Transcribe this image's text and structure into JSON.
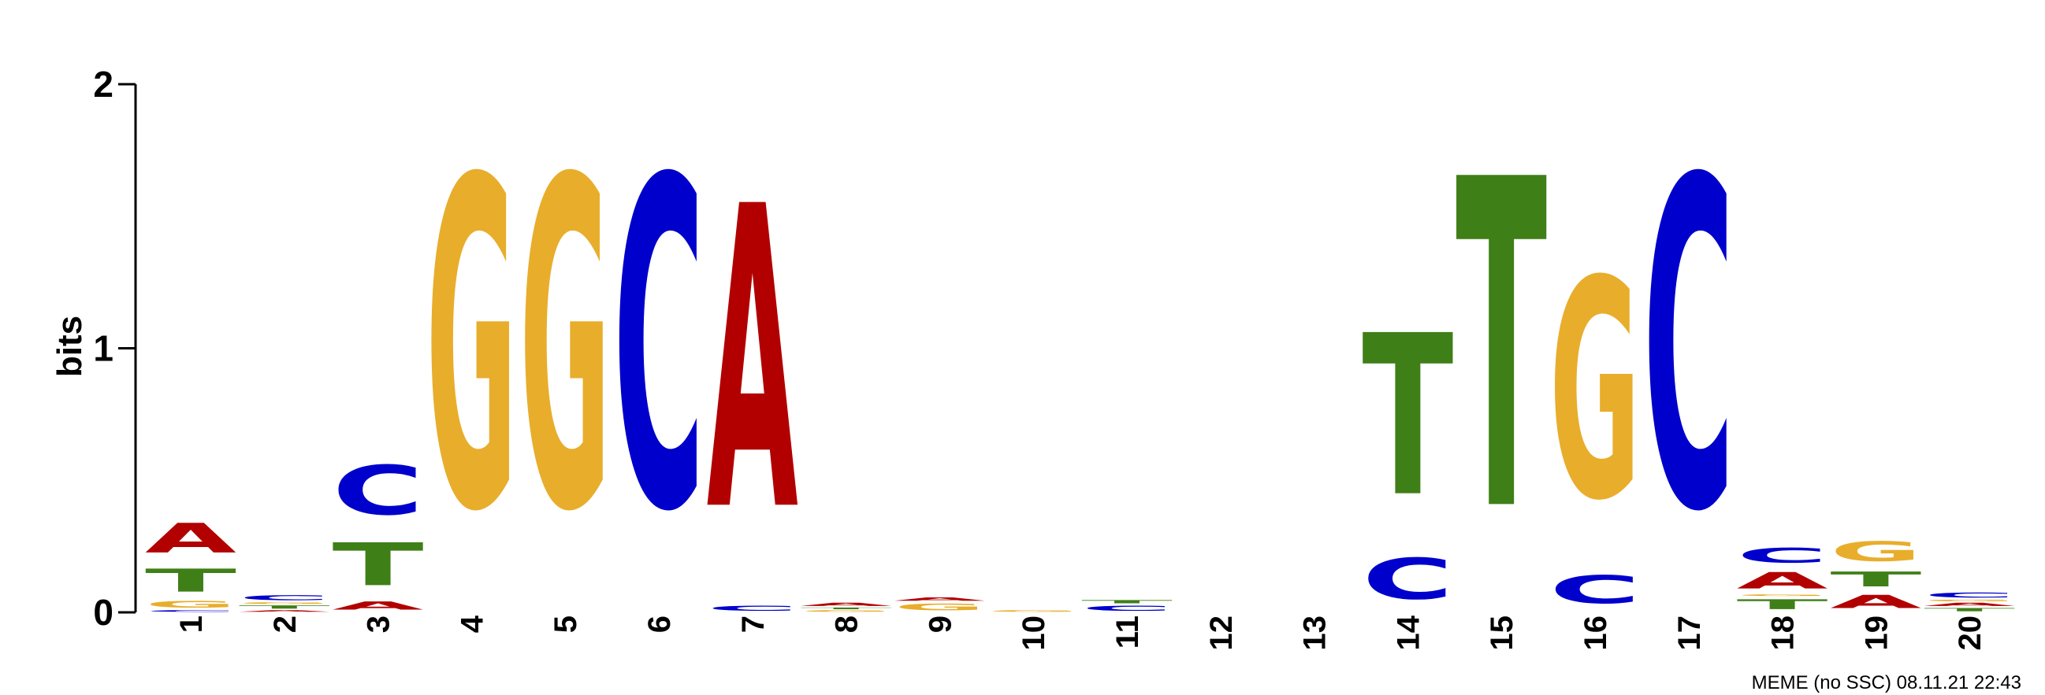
{
  "chart_data": {
    "type": "sequence-logo",
    "ylabel": "bits",
    "ylim": [
      0,
      2
    ],
    "yticks": [
      "0",
      "1",
      "2"
    ],
    "positions": [
      "1",
      "2",
      "3",
      "4",
      "5",
      "6",
      "7",
      "8",
      "9",
      "10",
      "11",
      "12",
      "13",
      "14",
      "15",
      "16",
      "17",
      "18",
      "19",
      "20"
    ],
    "colors": {
      "A": "#b20000",
      "C": "#0000cc",
      "G": "#e8ad2b",
      "T": "#3f7f17"
    },
    "stacks": [
      [
        {
          "letter": "C",
          "bits": 0.01
        },
        {
          "letter": "G",
          "bits": 0.04
        },
        {
          "letter": "T",
          "bits": 0.14
        },
        {
          "letter": "A",
          "bits": 0.18
        }
      ],
      [
        {
          "letter": "A",
          "bits": 0.01
        },
        {
          "letter": "T",
          "bits": 0.02
        },
        {
          "letter": "G",
          "bits": 0.01
        },
        {
          "letter": "C",
          "bits": 0.03
        }
      ],
      [
        {
          "letter": "A",
          "bits": 0.05
        },
        {
          "letter": "T",
          "bits": 0.26
        },
        {
          "letter": "C",
          "bits": 0.3
        }
      ],
      [
        {
          "letter": "G",
          "bits": 2.0
        }
      ],
      [
        {
          "letter": "G",
          "bits": 2.0
        }
      ],
      [
        {
          "letter": "C",
          "bits": 2.0
        }
      ],
      [
        {
          "letter": "C",
          "bits": 0.03
        },
        {
          "letter": "A",
          "bits": 1.84
        }
      ],
      [
        {
          "letter": "G",
          "bits": 0.01
        },
        {
          "letter": "T",
          "bits": 0.01
        },
        {
          "letter": "A",
          "bits": 0.02
        }
      ],
      [
        {
          "letter": "G",
          "bits": 0.04
        },
        {
          "letter": "A",
          "bits": 0.02
        }
      ],
      [
        {
          "letter": "G",
          "bits": 0.01
        }
      ],
      [
        {
          "letter": "C",
          "bits": 0.03
        },
        {
          "letter": "T",
          "bits": 0.02
        }
      ],
      [],
      [],
      [
        {
          "letter": "C",
          "bits": 0.25
        },
        {
          "letter": "T",
          "bits": 0.98
        }
      ],
      [
        {
          "letter": "T",
          "bits": 2.0
        }
      ],
      [
        {
          "letter": "C",
          "bits": 0.17
        },
        {
          "letter": "G",
          "bits": 1.33
        }
      ],
      [
        {
          "letter": "C",
          "bits": 2.0
        }
      ],
      [
        {
          "letter": "T",
          "bits": 0.06
        },
        {
          "letter": "G",
          "bits": 0.01
        },
        {
          "letter": "A",
          "bits": 0.1
        },
        {
          "letter": "C",
          "bits": 0.09
        }
      ],
      [
        {
          "letter": "A",
          "bits": 0.08
        },
        {
          "letter": "T",
          "bits": 0.09
        },
        {
          "letter": "G",
          "bits": 0.12
        }
      ],
      [
        {
          "letter": "T",
          "bits": 0.02
        },
        {
          "letter": "A",
          "bits": 0.02
        },
        {
          "letter": "G",
          "bits": 0.01
        },
        {
          "letter": "C",
          "bits": 0.03
        }
      ]
    ]
  },
  "footer": {
    "text": "MEME (no SSC) 08.11.21 22:43"
  }
}
